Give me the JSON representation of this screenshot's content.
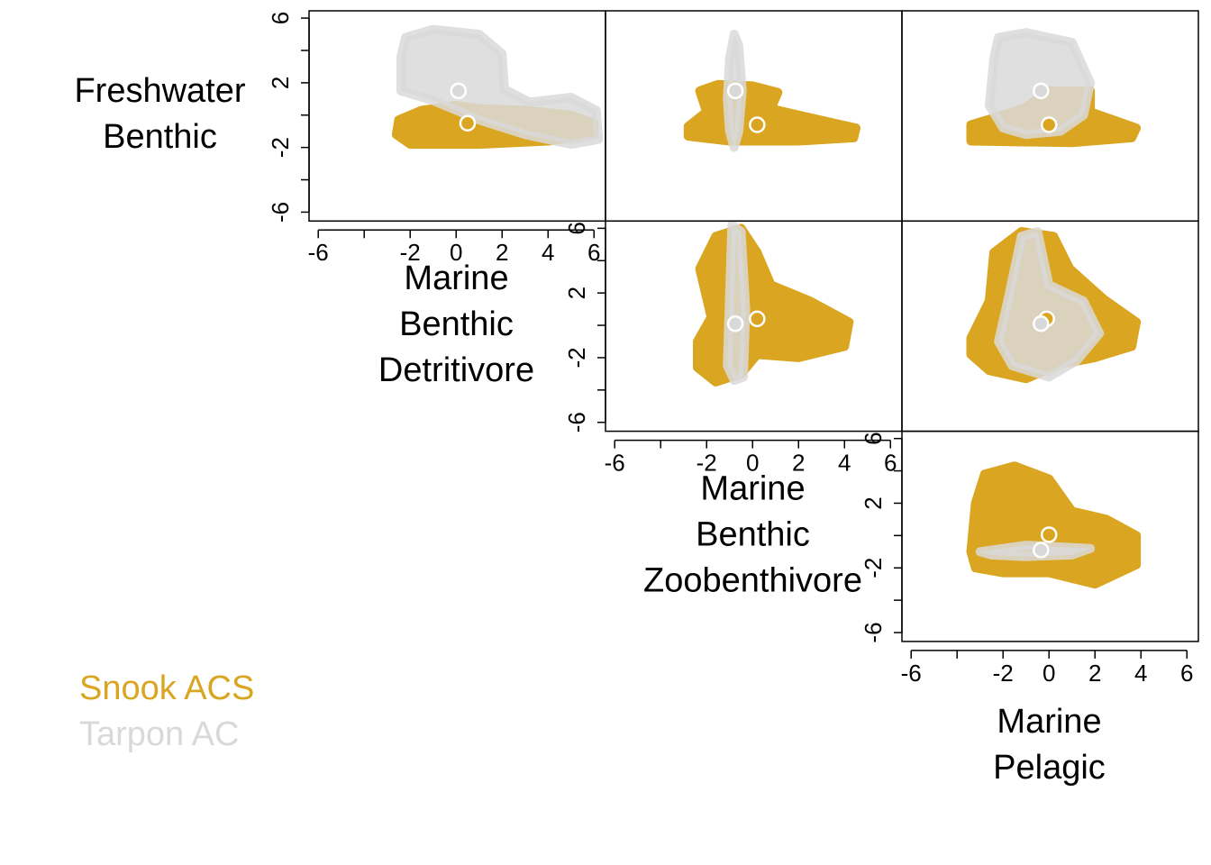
{
  "chart_data": {
    "type": "pairs",
    "variables": [
      "Freshwater Benthic",
      "Marine Benthic Detritivore",
      "Marine Benthic Zoobenthivore",
      "Marine Pelagic"
    ],
    "xlim": [
      -6.4,
      6.5
    ],
    "ylim": [
      -6.55,
      6.45
    ],
    "xticks": [
      -6,
      -2,
      0,
      2,
      4,
      6
    ],
    "xticks_minor": [
      -4
    ],
    "yticks": [
      -6,
      -2,
      2,
      6
    ],
    "yticks_minor": [
      -4,
      0,
      4
    ],
    "series": [
      {
        "name": "Snook ACS",
        "color": "#DAA520"
      },
      {
        "name": "Tarpon AC",
        "color": "#D9D9D9"
      }
    ],
    "panels": [
      {
        "x_var": 1,
        "y_var": 0,
        "regions": [
          {
            "x": [
              -2.5,
              -1.5,
              0,
              1,
              3,
              5,
              6,
              6,
              4,
              1,
              -2,
              -2.6
            ],
            "y": [
              -0.3,
              0.3,
              0.6,
              0.4,
              0.3,
              0,
              -0.5,
              -1.2,
              -1.6,
              -1.8,
              -1.8,
              -1.2
            ]
          },
          {
            "x": [
              -2.4,
              -2.2,
              -1,
              1,
              2,
              2.1,
              3.2,
              5,
              6.1,
              6.2,
              5,
              3,
              1,
              -1,
              -2.4
            ],
            "y": [
              3.6,
              4.8,
              5.3,
              5,
              3.8,
              1.6,
              0.8,
              1.1,
              0.3,
              -1.5,
              -1.8,
              -1.2,
              -0.3,
              0.9,
              1.5
            ]
          }
        ],
        "means": [
          {
            "x": 0.5,
            "y": -0.5
          },
          {
            "x": 0.1,
            "y": 1.5
          }
        ]
      },
      {
        "x_var": 2,
        "y_var": 0,
        "regions": [
          {
            "x": [
              -2.8,
              -2,
              -2.3,
              -1.5,
              0,
              1.1,
              0.8,
              2,
              4.5,
              4.4,
              2,
              -1,
              -2.8
            ],
            "y": [
              -0.7,
              0.2,
              1.5,
              1.9,
              1.8,
              1.4,
              0.4,
              0,
              -0.8,
              -1.4,
              -1.6,
              -1.6,
              -1.3
            ]
          },
          {
            "x": [
              -1.1,
              -1,
              -0.8,
              -0.6,
              -0.45,
              -0.6,
              -0.8,
              -1
            ],
            "y": [
              1,
              3.5,
              5,
              4.3,
              1.5,
              -1,
              -2,
              -1
            ]
          }
        ],
        "means": [
          {
            "x": 0.2,
            "y": -0.6
          },
          {
            "x": -0.75,
            "y": 1.5
          }
        ]
      },
      {
        "x_var": 3,
        "y_var": 0,
        "regions": [
          {
            "x": [
              -3.4,
              -2,
              -1,
              0,
              1.8,
              1.8,
              3.8,
              3.6,
              1,
              -3.4
            ],
            "y": [
              -0.6,
              0,
              0.5,
              1.5,
              1.5,
              0.2,
              -0.8,
              -1.4,
              -1.7,
              -1.6
            ]
          },
          {
            "x": [
              -2.4,
              -2.2,
              -1,
              1,
              1.8,
              1.5,
              0.5,
              -1,
              -2,
              -2.6
            ],
            "y": [
              3.5,
              4.8,
              5.1,
              4.5,
              2,
              0,
              -1,
              -1.2,
              -0.8,
              0.6
            ]
          }
        ],
        "means": [
          {
            "x": 0,
            "y": -0.6
          },
          {
            "x": -0.35,
            "y": 1.5
          }
        ]
      },
      {
        "x_var": 2,
        "y_var": 1,
        "regions": [
          {
            "x": [
              -2.4,
              -1.8,
              -2.3,
              -1.6,
              -0.5,
              0.2,
              0.8,
              2.5,
              4.2,
              4,
              2,
              0.2,
              -0.5,
              -1.6,
              -2.4
            ],
            "y": [
              -1,
              0.5,
              3.5,
              5.5,
              6,
              4.5,
              2.5,
              1.5,
              0.2,
              -1.3,
              -2,
              -1.8,
              -3,
              -3.5,
              -2.6
            ]
          },
          {
            "x": [
              -1.1,
              -0.9,
              -0.5,
              -0.3,
              -0.4,
              -0.8
            ],
            "y": [
              -2.5,
              6.2,
              5.8,
              1,
              -3.2,
              -3.4
            ]
          }
        ],
        "means": [
          {
            "x": 0.2,
            "y": 0.4
          },
          {
            "x": -0.75,
            "y": 0.1
          }
        ]
      },
      {
        "x_var": 3,
        "y_var": 1,
        "regions": [
          {
            "x": [
              -3.4,
              -2.6,
              -2.4,
              -1.2,
              0.2,
              0.9,
              2.4,
              3.8,
              3.6,
              2,
              0.5,
              -1,
              -2.6,
              -3.4
            ],
            "y": [
              -0.8,
              1.5,
              4.5,
              5.8,
              5.5,
              3.5,
              1.6,
              0.2,
              -1.3,
              -2,
              -2.4,
              -3.3,
              -2.8,
              -1.8
            ]
          },
          {
            "x": [
              -2.2,
              -1.8,
              -1.2,
              -0.5,
              0,
              1.5,
              2.2,
              1.2,
              0,
              -1.6
            ],
            "y": [
              -1,
              1.5,
              5.5,
              5.8,
              2.5,
              1.5,
              -0.5,
              -2.2,
              -3.2,
              -2.5
            ]
          }
        ],
        "means": [
          {
            "x": -0.1,
            "y": 0.4
          },
          {
            "x": -0.35,
            "y": 0.1
          }
        ]
      },
      {
        "x_var": 3,
        "y_var": 2,
        "regions": [
          {
            "x": [
              -3.4,
              -3.2,
              -2.8,
              -1.5,
              0,
              1,
              2.5,
              3.8,
              3.8,
              2,
              0,
              -2,
              -3.2
            ],
            "y": [
              -1,
              2,
              3.8,
              4.3,
              3.5,
              1.5,
              1,
              0,
              -1.8,
              -3,
              -2.3,
              -2.3,
              -2
            ]
          },
          {
            "x": [
              -3,
              -1,
              1.8,
              1,
              -1,
              -2.5
            ],
            "y": [
              -1,
              -0.6,
              -0.8,
              -1.2,
              -1.3,
              -1.2
            ]
          }
        ],
        "means": [
          {
            "x": 0,
            "y": 0.05
          },
          {
            "x": -0.35,
            "y": -0.9
          }
        ]
      }
    ]
  }
}
